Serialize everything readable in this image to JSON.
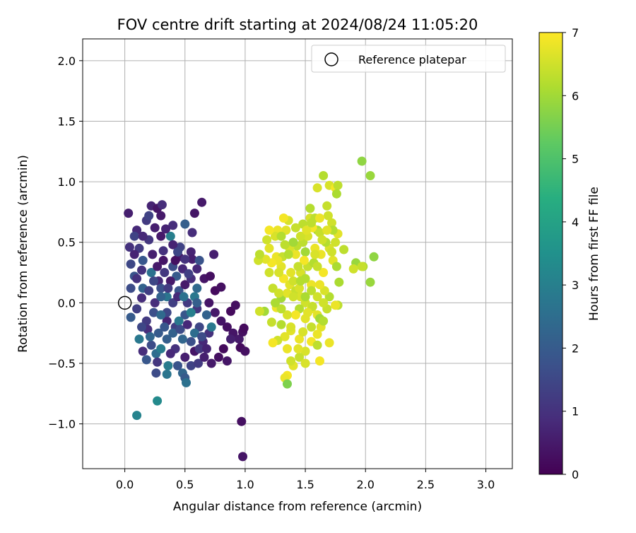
{
  "chart_data": {
    "type": "scatter",
    "title": "FOV centre drift starting at 2024/08/24 11:05:20",
    "xlabel": "Angular distance from reference (arcmin)",
    "ylabel": "Rotation from reference (arcmin)",
    "xlim": [
      -0.35,
      3.22
    ],
    "ylim": [
      -1.37,
      2.18
    ],
    "xticks": [
      0.0,
      0.5,
      1.0,
      1.5,
      2.0,
      2.5,
      3.0
    ],
    "xtick_labels": [
      "0.0",
      "0.5",
      "1.0",
      "1.5",
      "2.0",
      "2.5",
      "3.0"
    ],
    "yticks": [
      -1.0,
      -0.5,
      0.0,
      0.5,
      1.0,
      1.5,
      2.0
    ],
    "ytick_labels": [
      "−1.0",
      "−0.5",
      "0.0",
      "0.5",
      "1.0",
      "1.5",
      "2.0"
    ],
    "grid": true,
    "legend": {
      "placement": "top-right",
      "entries": [
        "Reference platepar"
      ]
    },
    "reference_point": {
      "x": 0.0,
      "y": 0.0
    },
    "colorbar": {
      "label": "Hours from first FF file",
      "colormap": "viridis",
      "range": [
        0,
        7
      ],
      "ticks": [
        "0",
        "1",
        "2",
        "3",
        "4",
        "5",
        "6",
        "7"
      ]
    },
    "points": [
      [
        0.03,
        0.74,
        0.6
      ],
      [
        0.1,
        0.6,
        0.8
      ],
      [
        0.08,
        0.55,
        1.4
      ],
      [
        0.12,
        0.45,
        1.2
      ],
      [
        0.05,
        0.32,
        1.5
      ],
      [
        0.08,
        0.22,
        1.8
      ],
      [
        0.15,
        0.12,
        2.2
      ],
      [
        0.05,
        0.12,
        1.6
      ],
      [
        0.1,
        -0.05,
        1.3
      ],
      [
        0.05,
        -0.12,
        2.0
      ],
      [
        0.12,
        -0.3,
        2.8
      ],
      [
        0.15,
        -0.4,
        0.9
      ],
      [
        0.18,
        -0.47,
        1.9
      ],
      [
        0.1,
        -0.93,
        3.1
      ],
      [
        0.27,
        -0.81,
        3.3
      ],
      [
        0.18,
        0.68,
        1.2
      ],
      [
        0.22,
        0.8,
        0.7
      ],
      [
        0.27,
        0.78,
        0.4
      ],
      [
        0.31,
        0.81,
        0.9
      ],
      [
        0.3,
        0.72,
        0.5
      ],
      [
        0.25,
        0.62,
        0.6
      ],
      [
        0.2,
        0.52,
        1.1
      ],
      [
        0.3,
        0.55,
        0.5
      ],
      [
        0.4,
        0.64,
        0.9
      ],
      [
        0.38,
        0.55,
        3.0
      ],
      [
        0.5,
        0.65,
        2.1
      ],
      [
        0.46,
        0.46,
        1.4
      ],
      [
        0.55,
        0.42,
        0.7
      ],
      [
        0.45,
        0.38,
        0.5
      ],
      [
        0.4,
        0.3,
        1.6
      ],
      [
        0.33,
        0.25,
        1.1
      ],
      [
        0.28,
        0.18,
        0.8
      ],
      [
        0.22,
        0.25,
        2.6
      ],
      [
        0.3,
        0.12,
        1.7
      ],
      [
        0.35,
        0.05,
        2.7
      ],
      [
        0.4,
        0.0,
        1.3
      ],
      [
        0.45,
        0.1,
        1.8
      ],
      [
        0.5,
        0.15,
        0.5
      ],
      [
        0.55,
        0.2,
        0.9
      ],
      [
        0.6,
        0.12,
        2.4
      ],
      [
        0.58,
        0.05,
        2.8
      ],
      [
        0.6,
        -0.05,
        1.1
      ],
      [
        0.5,
        -0.1,
        1.9
      ],
      [
        0.42,
        -0.2,
        1.3
      ],
      [
        0.35,
        -0.15,
        0.7
      ],
      [
        0.28,
        -0.25,
        2.0
      ],
      [
        0.22,
        -0.35,
        1.6
      ],
      [
        0.26,
        -0.42,
        2.5
      ],
      [
        0.3,
        -0.38,
        2.9
      ],
      [
        0.35,
        -0.3,
        2.1
      ],
      [
        0.42,
        -0.38,
        1.0
      ],
      [
        0.5,
        -0.45,
        0.6
      ],
      [
        0.55,
        -0.52,
        1.4
      ],
      [
        0.48,
        -0.58,
        2.3
      ],
      [
        0.26,
        -0.58,
        1.6
      ],
      [
        0.35,
        -0.59,
        2.7
      ],
      [
        0.36,
        -0.52,
        2.9
      ],
      [
        0.5,
        -0.62,
        2.0
      ],
      [
        0.51,
        -0.66,
        2.6
      ],
      [
        0.61,
        -0.5,
        1.2
      ],
      [
        0.64,
        0.83,
        0.5
      ],
      [
        0.58,
        0.74,
        0.4
      ],
      [
        0.56,
        0.58,
        0.9
      ],
      [
        0.56,
        0.36,
        0.6
      ],
      [
        0.6,
        0.28,
        0.8
      ],
      [
        0.66,
        0.2,
        0.4
      ],
      [
        0.74,
        0.4,
        0.6
      ],
      [
        0.71,
        0.22,
        0.3
      ],
      [
        0.75,
        0.1,
        0.2
      ],
      [
        0.8,
        0.13,
        0.3
      ],
      [
        0.7,
        0.0,
        0.4
      ],
      [
        0.75,
        -0.08,
        0.5
      ],
      [
        0.8,
        -0.15,
        0.4
      ],
      [
        0.85,
        -0.2,
        0.3
      ],
      [
        0.9,
        -0.25,
        0.4
      ],
      [
        0.95,
        -0.3,
        0.5
      ],
      [
        0.98,
        -0.24,
        0.3
      ],
      [
        0.99,
        -0.21,
        0.2
      ],
      [
        0.88,
        -0.3,
        0.6
      ],
      [
        0.82,
        -0.38,
        0.2
      ],
      [
        0.78,
        -0.45,
        0.3
      ],
      [
        0.85,
        -0.48,
        0.4
      ],
      [
        0.72,
        -0.5,
        0.5
      ],
      [
        0.66,
        -0.45,
        0.6
      ],
      [
        0.65,
        -0.32,
        0.8
      ],
      [
        0.7,
        -0.25,
        1.0
      ],
      [
        0.62,
        -0.2,
        1.5
      ],
      [
        0.68,
        -0.1,
        2.2
      ],
      [
        0.72,
        -0.2,
        2.8
      ],
      [
        0.55,
        -0.32,
        1.7
      ],
      [
        0.48,
        -0.3,
        2.3
      ],
      [
        0.6,
        0.0,
        2.1
      ],
      [
        0.55,
        -0.08,
        3.0
      ],
      [
        0.45,
        -0.15,
        2.8
      ],
      [
        0.35,
        -0.08,
        1.5
      ],
      [
        0.25,
        0.0,
        0.9
      ],
      [
        0.2,
        0.1,
        1.3
      ],
      [
        0.32,
        0.43,
        1.0
      ],
      [
        0.43,
        0.22,
        2.0
      ],
      [
        0.23,
        0.4,
        0.6
      ],
      [
        0.15,
        0.35,
        1.9
      ],
      [
        0.18,
        -0.15,
        1.2
      ],
      [
        0.24,
        -0.08,
        1.7
      ],
      [
        0.42,
        0.35,
        0.3
      ],
      [
        0.48,
        0.28,
        0.8
      ],
      [
        0.52,
        0.0,
        1.2
      ],
      [
        0.62,
        0.35,
        1.8
      ],
      [
        0.97,
        -0.98,
        0.3
      ],
      [
        0.98,
        -1.27,
        0.4
      ],
      [
        0.96,
        -0.37,
        0.2
      ],
      [
        1.0,
        -0.4,
        0.3
      ],
      [
        0.88,
        -0.07,
        0.2
      ],
      [
        0.92,
        -0.02,
        0.3
      ],
      [
        0.38,
        0.18,
        0.5
      ],
      [
        0.27,
        0.3,
        0.5
      ],
      [
        0.32,
        0.35,
        0.4
      ],
      [
        0.14,
        0.27,
        1.0
      ],
      [
        0.08,
        0.4,
        0.7
      ],
      [
        0.04,
        0.46,
        1.0
      ],
      [
        0.19,
        -0.22,
        0.9
      ],
      [
        0.14,
        -0.2,
        1.5
      ],
      [
        0.3,
        -0.1,
        2.4
      ],
      [
        0.33,
        -0.2,
        1.9
      ],
      [
        0.4,
        -0.25,
        2.2
      ],
      [
        0.46,
        -0.22,
        1.6
      ],
      [
        0.52,
        -0.18,
        0.8
      ],
      [
        0.58,
        -0.4,
        0.4
      ],
      [
        0.62,
        -0.38,
        1.1
      ],
      [
        0.68,
        -0.38,
        0.7
      ],
      [
        0.4,
        0.48,
        0.7
      ],
      [
        0.36,
        0.12,
        1.2
      ],
      [
        0.44,
        0.05,
        0.8
      ],
      [
        0.49,
        0.05,
        2.6
      ],
      [
        0.3,
        0.05,
        2.2
      ],
      [
        0.24,
        0.18,
        1.5
      ],
      [
        0.44,
        -0.52,
        1.8
      ],
      [
        0.38,
        -0.42,
        0.8
      ],
      [
        0.27,
        -0.49,
        1.1
      ],
      [
        0.21,
        -0.28,
        2.3
      ],
      [
        0.14,
        0.04,
        0.9
      ],
      [
        0.1,
        0.2,
        1.0
      ],
      [
        0.15,
        0.55,
        0.8
      ],
      [
        0.2,
        0.72,
        1.4
      ],
      [
        0.34,
        0.61,
        0.7
      ],
      [
        0.44,
        0.42,
        1.5
      ],
      [
        0.5,
        0.36,
        1.0
      ],
      [
        0.53,
        0.24,
        1.3
      ],
      [
        0.58,
        -0.25,
        2.5
      ],
      [
        0.64,
        -0.28,
        1.6
      ],
      [
        1.97,
        1.17,
        5.8
      ],
      [
        2.04,
        1.05,
        5.9
      ],
      [
        1.65,
        1.05,
        6.2
      ],
      [
        1.7,
        0.97,
        6.6
      ],
      [
        1.75,
        0.95,
        6.9
      ],
      [
        1.77,
        0.97,
        6.3
      ],
      [
        1.6,
        0.95,
        6.6
      ],
      [
        1.76,
        0.9,
        6.1
      ],
      [
        1.68,
        0.8,
        6.4
      ],
      [
        1.54,
        0.78,
        6.2
      ],
      [
        1.69,
        0.72,
        6.5
      ],
      [
        1.54,
        0.7,
        6.6
      ],
      [
        1.58,
        0.7,
        6.3
      ],
      [
        1.62,
        0.7,
        6.8
      ],
      [
        1.72,
        0.66,
        6.5
      ],
      [
        1.77,
        0.57,
        6.7
      ],
      [
        1.73,
        0.6,
        6.2
      ],
      [
        1.6,
        0.6,
        6.1
      ],
      [
        1.48,
        0.65,
        6.3
      ],
      [
        1.42,
        0.62,
        6.4
      ],
      [
        1.36,
        0.68,
        6.6
      ],
      [
        1.32,
        0.7,
        6.9
      ],
      [
        1.34,
        0.6,
        6.7
      ],
      [
        1.27,
        0.6,
        6.8
      ],
      [
        1.25,
        0.55,
        6.6
      ],
      [
        1.2,
        0.6,
        6.9
      ],
      [
        1.18,
        0.52,
        6.5
      ],
      [
        1.2,
        0.45,
        6.7
      ],
      [
        1.26,
        0.38,
        6.8
      ],
      [
        1.3,
        0.3,
        6.7
      ],
      [
        1.32,
        0.2,
        6.9
      ],
      [
        1.37,
        0.15,
        6.7
      ],
      [
        1.42,
        0.1,
        6.4
      ],
      [
        1.46,
        0.05,
        6.6
      ],
      [
        1.5,
        0.0,
        6.5
      ],
      [
        1.55,
        -0.05,
        6.8
      ],
      [
        1.6,
        -0.1,
        6.7
      ],
      [
        1.62,
        -0.13,
        6.0
      ],
      [
        1.63,
        -0.2,
        6.7
      ],
      [
        1.6,
        -0.26,
        6.8
      ],
      [
        1.55,
        -0.32,
        6.9
      ],
      [
        1.5,
        -0.4,
        6.6
      ],
      [
        1.45,
        -0.45,
        6.4
      ],
      [
        1.4,
        -0.52,
        6.7
      ],
      [
        1.35,
        -0.6,
        6.9
      ],
      [
        1.33,
        -0.62,
        6.8
      ],
      [
        1.35,
        -0.67,
        5.6
      ],
      [
        1.38,
        -0.48,
        6.5
      ],
      [
        1.45,
        -0.3,
        6.8
      ],
      [
        1.48,
        -0.24,
        6.6
      ],
      [
        1.38,
        -0.23,
        6.7
      ],
      [
        1.3,
        -0.18,
        6.2
      ],
      [
        1.22,
        -0.16,
        6.4
      ],
      [
        1.16,
        -0.07,
        6.0
      ],
      [
        1.12,
        -0.07,
        6.5
      ],
      [
        1.26,
        -0.04,
        6.8
      ],
      [
        1.3,
        0.04,
        6.0
      ],
      [
        1.35,
        0.08,
        6.7
      ],
      [
        1.4,
        0.18,
        6.5
      ],
      [
        1.46,
        0.25,
        6.6
      ],
      [
        1.52,
        0.3,
        6.4
      ],
      [
        1.57,
        0.33,
        6.2
      ],
      [
        1.63,
        0.4,
        6.8
      ],
      [
        1.7,
        0.45,
        6.6
      ],
      [
        1.75,
        0.5,
        6.5
      ],
      [
        1.82,
        0.44,
        6.3
      ],
      [
        1.73,
        0.35,
        6.7
      ],
      [
        1.76,
        0.3,
        6.1
      ],
      [
        1.65,
        0.25,
        6.9
      ],
      [
        1.6,
        0.3,
        6.4
      ],
      [
        1.55,
        0.15,
        6.8
      ],
      [
        1.5,
        0.2,
        6.2
      ],
      [
        1.45,
        0.12,
        6.6
      ],
      [
        1.4,
        0.05,
        6.5
      ],
      [
        1.38,
        0.25,
        6.7
      ],
      [
        1.42,
        0.4,
        6.8
      ],
      [
        1.48,
        0.5,
        6.3
      ],
      [
        1.52,
        0.55,
        6.6
      ],
      [
        1.56,
        0.62,
        6.9
      ],
      [
        1.62,
        0.58,
        6.4
      ],
      [
        1.68,
        0.6,
        6.7
      ],
      [
        1.67,
        0.5,
        6.2
      ],
      [
        1.72,
        0.42,
        6.5
      ],
      [
        1.58,
        0.45,
        6.8
      ],
      [
        1.5,
        0.42,
        6.0
      ],
      [
        1.43,
        0.47,
        6.3
      ],
      [
        1.37,
        0.45,
        6.6
      ],
      [
        1.31,
        0.38,
        6.4
      ],
      [
        1.27,
        0.35,
        6.8
      ],
      [
        1.22,
        0.33,
        6.9
      ],
      [
        1.17,
        0.36,
        6.7
      ],
      [
        1.11,
        0.35,
        6.5
      ],
      [
        1.12,
        0.4,
        6.3
      ],
      [
        1.3,
        0.55,
        6.2
      ],
      [
        1.92,
        0.33,
        5.9
      ],
      [
        1.98,
        0.3,
        6.1
      ],
      [
        2.07,
        0.38,
        5.8
      ],
      [
        2.04,
        0.17,
        5.9
      ],
      [
        1.97,
        0.3,
        6.4
      ],
      [
        1.9,
        0.28,
        6.5
      ],
      [
        1.78,
        0.17,
        6.1
      ],
      [
        1.77,
        -0.02,
        6.3
      ],
      [
        1.75,
        -0.02,
        6.8
      ],
      [
        1.7,
        0.05,
        6.2
      ],
      [
        1.68,
        -0.05,
        6.4
      ],
      [
        1.65,
        0.0,
        6.5
      ],
      [
        1.66,
        0.1,
        6.6
      ],
      [
        1.62,
        0.15,
        6.8
      ],
      [
        1.55,
        0.1,
        6.3
      ],
      [
        1.5,
        0.05,
        6.1
      ],
      [
        1.56,
        -0.03,
        6.4
      ],
      [
        1.6,
        0.05,
        6.5
      ],
      [
        1.45,
        -0.05,
        6.2
      ],
      [
        1.42,
        -0.1,
        6.9
      ],
      [
        1.38,
        -0.2,
        6.6
      ],
      [
        1.33,
        -0.28,
        6.7
      ],
      [
        1.27,
        -0.31,
        6.5
      ],
      [
        1.23,
        -0.33,
        6.9
      ],
      [
        1.35,
        -0.38,
        6.8
      ],
      [
        1.44,
        -0.38,
        6.7
      ],
      [
        1.5,
        -0.5,
        6.6
      ],
      [
        1.62,
        -0.48,
        6.9
      ],
      [
        1.7,
        -0.33,
        6.8
      ],
      [
        1.6,
        -0.35,
        6.3
      ],
      [
        1.55,
        -0.2,
        6.4
      ],
      [
        1.5,
        -0.13,
        6.7
      ],
      [
        1.35,
        -0.1,
        6.6
      ],
      [
        1.3,
        -0.05,
        6.3
      ],
      [
        1.25,
        0.0,
        6.1
      ],
      [
        1.23,
        0.12,
        6.4
      ],
      [
        1.2,
        0.25,
        6.5
      ],
      [
        1.28,
        0.25,
        6.6
      ],
      [
        1.36,
        0.4,
        6.2
      ],
      [
        1.4,
        0.5,
        6.0
      ],
      [
        1.46,
        0.55,
        6.5
      ],
      [
        1.51,
        0.6,
        6.7
      ],
      [
        1.55,
        0.66,
        6.3
      ],
      [
        1.64,
        0.52,
        6.5
      ],
      [
        1.58,
        0.4,
        6.6
      ],
      [
        1.49,
        0.35,
        6.9
      ],
      [
        1.44,
        0.3,
        6.4
      ],
      [
        1.33,
        0.48,
        6.3
      ],
      [
        1.46,
        0.18,
        6.2
      ],
      [
        1.28,
        0.08,
        6.5
      ],
      [
        1.52,
        -0.08,
        6.7
      ],
      [
        1.65,
        -0.15,
        6.2
      ]
    ]
  }
}
